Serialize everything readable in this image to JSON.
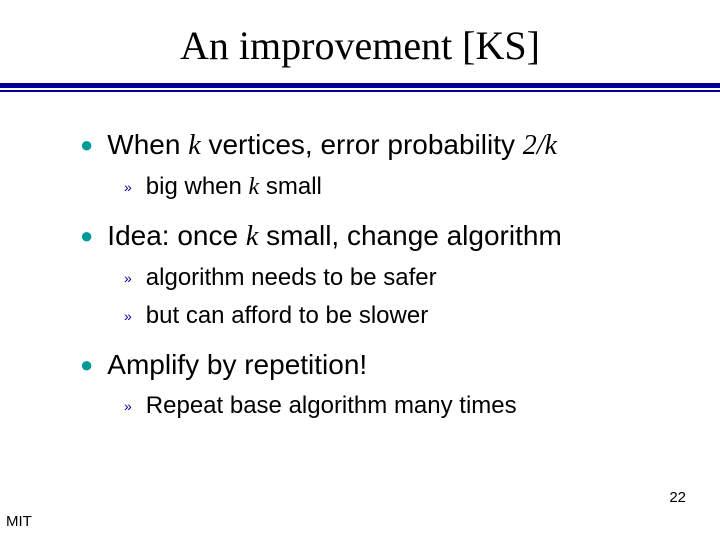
{
  "title": "An improvement [KS]",
  "colors": {
    "rule": "#000099",
    "bullet": "#009a9a",
    "subbullet": "#000099",
    "text": "#000000",
    "background": "#ffffff"
  },
  "typography": {
    "title_font": "Times New Roman",
    "title_size_pt": 40,
    "body_font": "Arial",
    "l1_size_pt": 28,
    "l2_size_pt": 24
  },
  "bullet_glyph": "●",
  "subbullet_glyph": "»",
  "items": [
    {
      "parts": [
        {
          "t": "When ",
          "i": false
        },
        {
          "t": "k",
          "i": true
        },
        {
          "t": " vertices, error probability ",
          "i": false
        },
        {
          "t": "2/k",
          "i": true
        }
      ],
      "sub": [
        {
          "parts": [
            {
              "t": "big when ",
              "i": false
            },
            {
              "t": "k",
              "i": true
            },
            {
              "t": " small",
              "i": false
            }
          ]
        }
      ]
    },
    {
      "parts": [
        {
          "t": "Idea: once ",
          "i": false
        },
        {
          "t": "k",
          "i": true
        },
        {
          "t": " small, change algorithm",
          "i": false
        }
      ],
      "sub": [
        {
          "parts": [
            {
              "t": "algorithm needs to be safer",
              "i": false
            }
          ]
        },
        {
          "parts": [
            {
              "t": "but can afford to be slower",
              "i": false
            }
          ]
        }
      ]
    },
    {
      "parts": [
        {
          "t": "Amplify by repetition!",
          "i": false
        }
      ],
      "sub": [
        {
          "parts": [
            {
              "t": "Repeat base algorithm many times",
              "i": false
            }
          ]
        }
      ]
    }
  ],
  "footer": "MIT",
  "page_number": "22"
}
